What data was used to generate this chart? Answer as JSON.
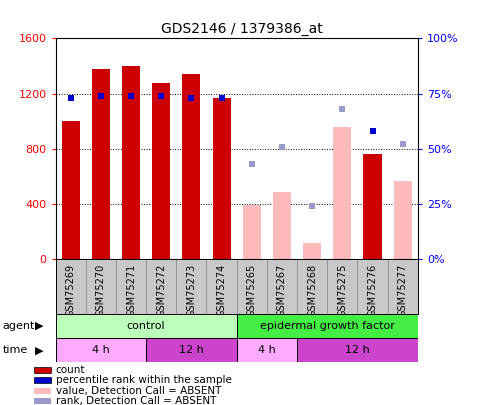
{
  "title": "GDS2146 / 1379386_at",
  "samples": [
    "GSM75269",
    "GSM75270",
    "GSM75271",
    "GSM75272",
    "GSM75273",
    "GSM75274",
    "GSM75265",
    "GSM75267",
    "GSM75268",
    "GSM75275",
    "GSM75276",
    "GSM75277"
  ],
  "bar_values": [
    1000,
    1380,
    1400,
    1280,
    1340,
    1170,
    null,
    null,
    null,
    null,
    760,
    null
  ],
  "bar_values_absent": [
    null,
    null,
    null,
    null,
    null,
    null,
    390,
    490,
    120,
    960,
    null,
    570
  ],
  "percentile_present": [
    73,
    74,
    74,
    74,
    73,
    73,
    null,
    null,
    null,
    null,
    58,
    null
  ],
  "percentile_absent": [
    null,
    null,
    null,
    null,
    null,
    null,
    43,
    51,
    24,
    68,
    null,
    52
  ],
  "ylim_left": [
    0,
    1600
  ],
  "ylim_right": [
    0,
    100
  ],
  "yticks_left": [
    0,
    400,
    800,
    1200,
    1600
  ],
  "ytick_labels_left": [
    "0",
    "400",
    "800",
    "1200",
    "1600"
  ],
  "yticks_right": [
    0,
    25,
    50,
    75,
    100
  ],
  "ytick_labels_right": [
    "0%",
    "25%",
    "50%",
    "75%",
    "100%"
  ],
  "bar_color_present": "#cc0000",
  "bar_color_absent": "#ffbbbb",
  "dot_color_present": "#0000cc",
  "dot_color_absent": "#9999cc",
  "agent_control_color": "#bbffbb",
  "agent_egf_color": "#44ee44",
  "time_4h_light": "#ffaaff",
  "time_12h_dark": "#cc44cc",
  "control_label": "control",
  "egf_label": "epidermal growth factor",
  "legend_items": [
    {
      "color": "#cc0000",
      "label": "count"
    },
    {
      "color": "#0000cc",
      "label": "percentile rank within the sample"
    },
    {
      "color": "#ffbbbb",
      "label": "value, Detection Call = ABSENT"
    },
    {
      "color": "#9999cc",
      "label": "rank, Detection Call = ABSENT"
    }
  ],
  "n_samples": 12,
  "control_count": 6,
  "egf_count": 6,
  "time_4h_control": 3,
  "time_12h_control": 3,
  "time_4h_egf": 2,
  "time_12h_egf": 4,
  "xtick_bg_color": "#c8c8c8"
}
